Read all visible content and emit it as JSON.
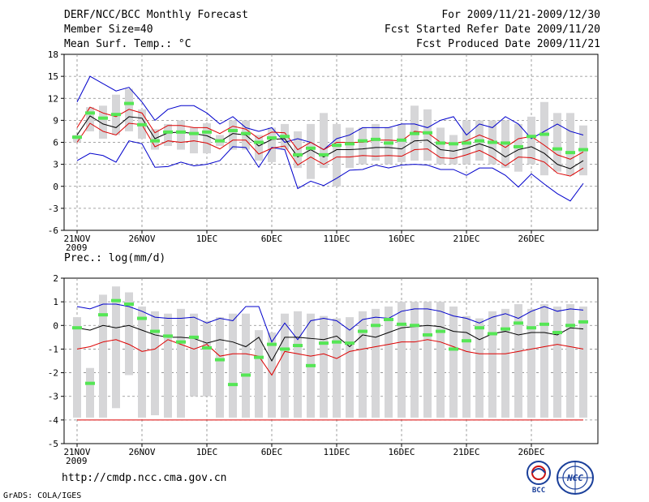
{
  "header": {
    "title": "DERF/NCC/BCC Monthly Forecast",
    "member_size": "Member Size=40",
    "variable": "Mean Surf. Temp.: °C",
    "period": "For 2009/11/21-2009/12/30",
    "started": "Fcst Started Refer Date 2009/11/20",
    "produced": "Fcst Produced Date 2009/11/21"
  },
  "footer": {
    "url": "http://cmdp.ncc.cma.gov.cn",
    "grads": "GrADS: COLA/IGES",
    "logo_bcc": "BCC",
    "logo_ncc": "NCC"
  },
  "colors": {
    "box": "#d6d6d8",
    "median": "#55e655",
    "mean": "#000000",
    "spread": "#dd0000",
    "extreme": "#0000cc"
  },
  "chart_data": [
    {
      "type": "box",
      "title": "Mean Surf. Temp.: °C",
      "ylim": [
        -6,
        18
      ],
      "yticks": [
        -6,
        -3,
        0,
        3,
        6,
        9,
        12,
        15,
        18
      ],
      "x_year_label": "2009",
      "xticks": [
        {
          "day": 0,
          "label": "21NOV"
        },
        {
          "day": 5,
          "label": "26NOV"
        },
        {
          "day": 10,
          "label": "1DEC"
        },
        {
          "day": 15,
          "label": "6DEC"
        },
        {
          "day": 20,
          "label": "11DEC"
        },
        {
          "day": 25,
          "label": "16DEC"
        },
        {
          "day": 30,
          "label": "21DEC"
        },
        {
          "day": 35,
          "label": "26DEC"
        }
      ],
      "series": [
        {
          "name": "max",
          "values": [
            11.5,
            15,
            14,
            13,
            13.5,
            11.5,
            9,
            10.5,
            11,
            11,
            10,
            8.5,
            9.5,
            8,
            7.5,
            8,
            6,
            6.5,
            6,
            5,
            6.5,
            7,
            8,
            8,
            8,
            8.5,
            8.5,
            8,
            9,
            9.5,
            7,
            8.5,
            8,
            9.5,
            8.5,
            6.5,
            7.5,
            8.5,
            7.5,
            7
          ]
        },
        {
          "name": "mean_plus_sd",
          "values": [
            8,
            10.8,
            10,
            9.5,
            10.5,
            10,
            7.3,
            8.3,
            8.3,
            8,
            8,
            7.2,
            8.2,
            7.8,
            6.5,
            7.4,
            7.3,
            5,
            6,
            5,
            6,
            6,
            6,
            6.3,
            6.3,
            6.2,
            7.5,
            7.3,
            6,
            5.8,
            6.2,
            7,
            6.3,
            5.3,
            6.5,
            6.8,
            5.6,
            4.3,
            3.7,
            4.7
          ]
        },
        {
          "name": "mean",
          "values": [
            7,
            9.6,
            8.5,
            8,
            9.5,
            9.3,
            6.5,
            7.3,
            7.4,
            7.2,
            6.9,
            6.1,
            7.2,
            7,
            5.5,
            6.4,
            6.5,
            4,
            5,
            4,
            5,
            5,
            5.1,
            5.3,
            5.3,
            5.1,
            6.2,
            6.3,
            5,
            4.8,
            5.2,
            5.8,
            5.2,
            4,
            5,
            5.4,
            4.5,
            3,
            2.4,
            3.5
          ]
        },
        {
          "name": "mean_minus_sd",
          "values": [
            6,
            8.6,
            7.5,
            7,
            8.6,
            8.4,
            5.4,
            6.2,
            6,
            6.2,
            5.9,
            5.1,
            6.3,
            6.3,
            4.4,
            5.2,
            5.5,
            2.9,
            4,
            3,
            4,
            4,
            4.2,
            4.1,
            4.2,
            4.1,
            5,
            5.1,
            3.9,
            3.8,
            4.3,
            4.9,
            4,
            2.8,
            4,
            3.9,
            3.3,
            1.8,
            1.4,
            2.5
          ]
        },
        {
          "name": "min",
          "values": [
            3.5,
            4.5,
            4.2,
            3.3,
            6.2,
            5.8,
            2.6,
            2.7,
            3.3,
            2.8,
            3,
            3.5,
            5.4,
            5.3,
            2.6,
            5.3,
            5,
            -0.3,
            0.7,
            0.1,
            1.1,
            2.2,
            2.3,
            2.9,
            2.5,
            2.9,
            3,
            2.9,
            2.3,
            2.3,
            1.5,
            2.5,
            2.5,
            1.5,
            -0.1,
            1.7,
            0.3,
            -1,
            -2,
            0.4
          ]
        },
        {
          "name": "median",
          "values": [
            6.7,
            10,
            9.3,
            9.8,
            11.3,
            8.4,
            6.2,
            7.4,
            7.4,
            7.2,
            7.4,
            6.2,
            7.6,
            7.2,
            6,
            6.6,
            6.8,
            4.3,
            5.2,
            4.3,
            5.6,
            5.8,
            6.2,
            6.4,
            5.9,
            6.3,
            7.2,
            7.3,
            5.9,
            5.8,
            5.9,
            6.2,
            6,
            5.9,
            5.4,
            6.8,
            7.1,
            5.1,
            4.6,
            5
          ]
        },
        {
          "name": "box_top",
          "values": [
            7,
            10.8,
            11,
            12.5,
            13.3,
            10.5,
            7.8,
            8.5,
            9,
            8,
            8.6,
            7,
            9,
            9,
            7,
            8,
            8.5,
            7.5,
            8.5,
            10,
            8.5,
            8,
            8,
            8.5,
            8,
            8.5,
            11,
            10.5,
            8,
            7,
            9,
            9,
            9,
            9,
            8.5,
            9.5,
            11.5,
            10,
            10,
            8.3
          ]
        },
        {
          "name": "box_bottom",
          "values": [
            6,
            7.5,
            6.5,
            7,
            7.5,
            6.5,
            5,
            5.5,
            5,
            4.5,
            4.5,
            5.5,
            5,
            5,
            3.5,
            3.3,
            5,
            2.5,
            1,
            2.5,
            0,
            2.5,
            3,
            3.5,
            3,
            3.3,
            3.5,
            3.5,
            3,
            3,
            3,
            3.5,
            3,
            2.5,
            2,
            3,
            1.5,
            2,
            1.5,
            1.5
          ]
        }
      ]
    },
    {
      "type": "box",
      "title": "Prec.: log(mm/d)",
      "ylim": [
        -5,
        2
      ],
      "yticks": [
        -5,
        -4,
        -3,
        -2,
        -1,
        0,
        1,
        2
      ],
      "x_year_label": "2009",
      "xticks": [
        {
          "day": 0,
          "label": "21NOV"
        },
        {
          "day": 5,
          "label": "26NOV"
        },
        {
          "day": 10,
          "label": "1DEC"
        },
        {
          "day": 15,
          "label": "6DEC"
        },
        {
          "day": 20,
          "label": "11DEC"
        },
        {
          "day": 25,
          "label": "16DEC"
        },
        {
          "day": 30,
          "label": "21DEC"
        },
        {
          "day": 35,
          "label": "26DEC"
        }
      ],
      "series": [
        {
          "name": "max",
          "values": [
            0.8,
            0.7,
            0.9,
            0.9,
            0.8,
            0.6,
            0.35,
            0.3,
            0.3,
            0.35,
            0.1,
            0.3,
            0.2,
            0.8,
            0.8,
            -0.7,
            0.1,
            -0.6,
            0.2,
            0.3,
            0.2,
            -0.2,
            0.25,
            0.35,
            0.3,
            0.6,
            0.7,
            0.7,
            0.6,
            0.4,
            0.3,
            0.1,
            0.35,
            0.5,
            0.3,
            0.6,
            0.8,
            0.6,
            0.7,
            0.65
          ]
        },
        {
          "name": "mean",
          "values": [
            -0.1,
            -0.2,
            0,
            -0.1,
            0,
            -0.2,
            -0.4,
            -0.5,
            -0.5,
            -0.55,
            -0.75,
            -0.6,
            -0.7,
            -0.9,
            -0.5,
            -1.5,
            -0.5,
            -0.5,
            -0.55,
            -0.6,
            -0.45,
            -0.9,
            -0.4,
            -0.5,
            -0.3,
            -0.1,
            -0.05,
            0,
            -0.05,
            -0.25,
            -0.3,
            -0.6,
            -0.35,
            -0.25,
            -0.4,
            -0.3,
            -0.3,
            -0.4,
            -0.1,
            -0.15
          ]
        },
        {
          "name": "spread",
          "values": [
            -1,
            -0.9,
            -0.7,
            -0.6,
            -0.8,
            -1.1,
            -1,
            -0.6,
            -0.8,
            -1,
            -0.8,
            -1.3,
            -1.2,
            -1.2,
            -1.3,
            -2.1,
            -1.1,
            -1.2,
            -1.3,
            -1.2,
            -1.4,
            -1.1,
            -1,
            -0.9,
            -0.8,
            -0.7,
            -0.7,
            -0.6,
            -0.7,
            -0.9,
            -1.1,
            -1.2,
            -1.2,
            -1.2,
            -1.1,
            -1,
            -0.9,
            -0.8,
            -0.9,
            -1
          ]
        },
        {
          "name": "min",
          "values": [
            -4,
            -4,
            -4,
            -4,
            -4,
            -4,
            -4,
            -4,
            -4,
            -4,
            -4,
            -4,
            -4,
            -4,
            -4,
            -4,
            -4,
            -4,
            -4,
            -4,
            -4,
            -4,
            -4,
            -4,
            -4,
            -4,
            -4,
            -4,
            -4,
            -4,
            -4,
            -4,
            -4,
            -4,
            -4,
            -4,
            -4,
            -4,
            -4,
            -4
          ]
        },
        {
          "name": "median",
          "values": [
            -0.1,
            -2.45,
            0.45,
            1.05,
            0.9,
            0.3,
            -0.25,
            -0.45,
            -0.7,
            -0.5,
            -0.95,
            -1.45,
            -2.5,
            -2.1,
            -1.35,
            -0.8,
            -1,
            -0.85,
            -1.7,
            -0.75,
            -0.7,
            -0.75,
            -0.25,
            0,
            0.25,
            0.05,
            0,
            -0.4,
            -0.25,
            -1,
            -0.65,
            -0.1,
            -0.35,
            -0.15,
            0.1,
            -0.1,
            0.05,
            -0.3,
            0,
            0.15
          ]
        },
        {
          "name": "box_top",
          "values": [
            0.35,
            -1.8,
            1.3,
            1.65,
            1.4,
            0.8,
            0.6,
            0.5,
            0.7,
            0.5,
            0.2,
            0.35,
            0.5,
            0.5,
            -0.2,
            -0.3,
            0.5,
            0.6,
            0.5,
            0.4,
            0.3,
            0.35,
            0.6,
            0.7,
            0.8,
            1,
            1,
            1,
            1,
            0.8,
            0.4,
            0.3,
            0.6,
            0.7,
            0.9,
            0.7,
            0.9,
            0.8,
            0.9,
            0.8
          ]
        },
        {
          "name": "box_bottom",
          "values": [
            -3.9,
            -3.9,
            -3.9,
            -3.5,
            -2.1,
            -3.9,
            -3.8,
            -3.9,
            -3.9,
            -3,
            -3,
            -3.9,
            -3.9,
            -3.9,
            -3.9,
            -3.9,
            -3.9,
            -3.9,
            -3.9,
            -3.9,
            -3.9,
            -3.9,
            -3.9,
            -3.9,
            -3.9,
            -3.9,
            -3.9,
            -3.9,
            -3.9,
            -3.9,
            -3.9,
            -3.9,
            -3.9,
            -3.9,
            -3.9,
            -3.9,
            -3.9,
            -3.9,
            -3.9,
            -3.9
          ]
        }
      ]
    }
  ]
}
